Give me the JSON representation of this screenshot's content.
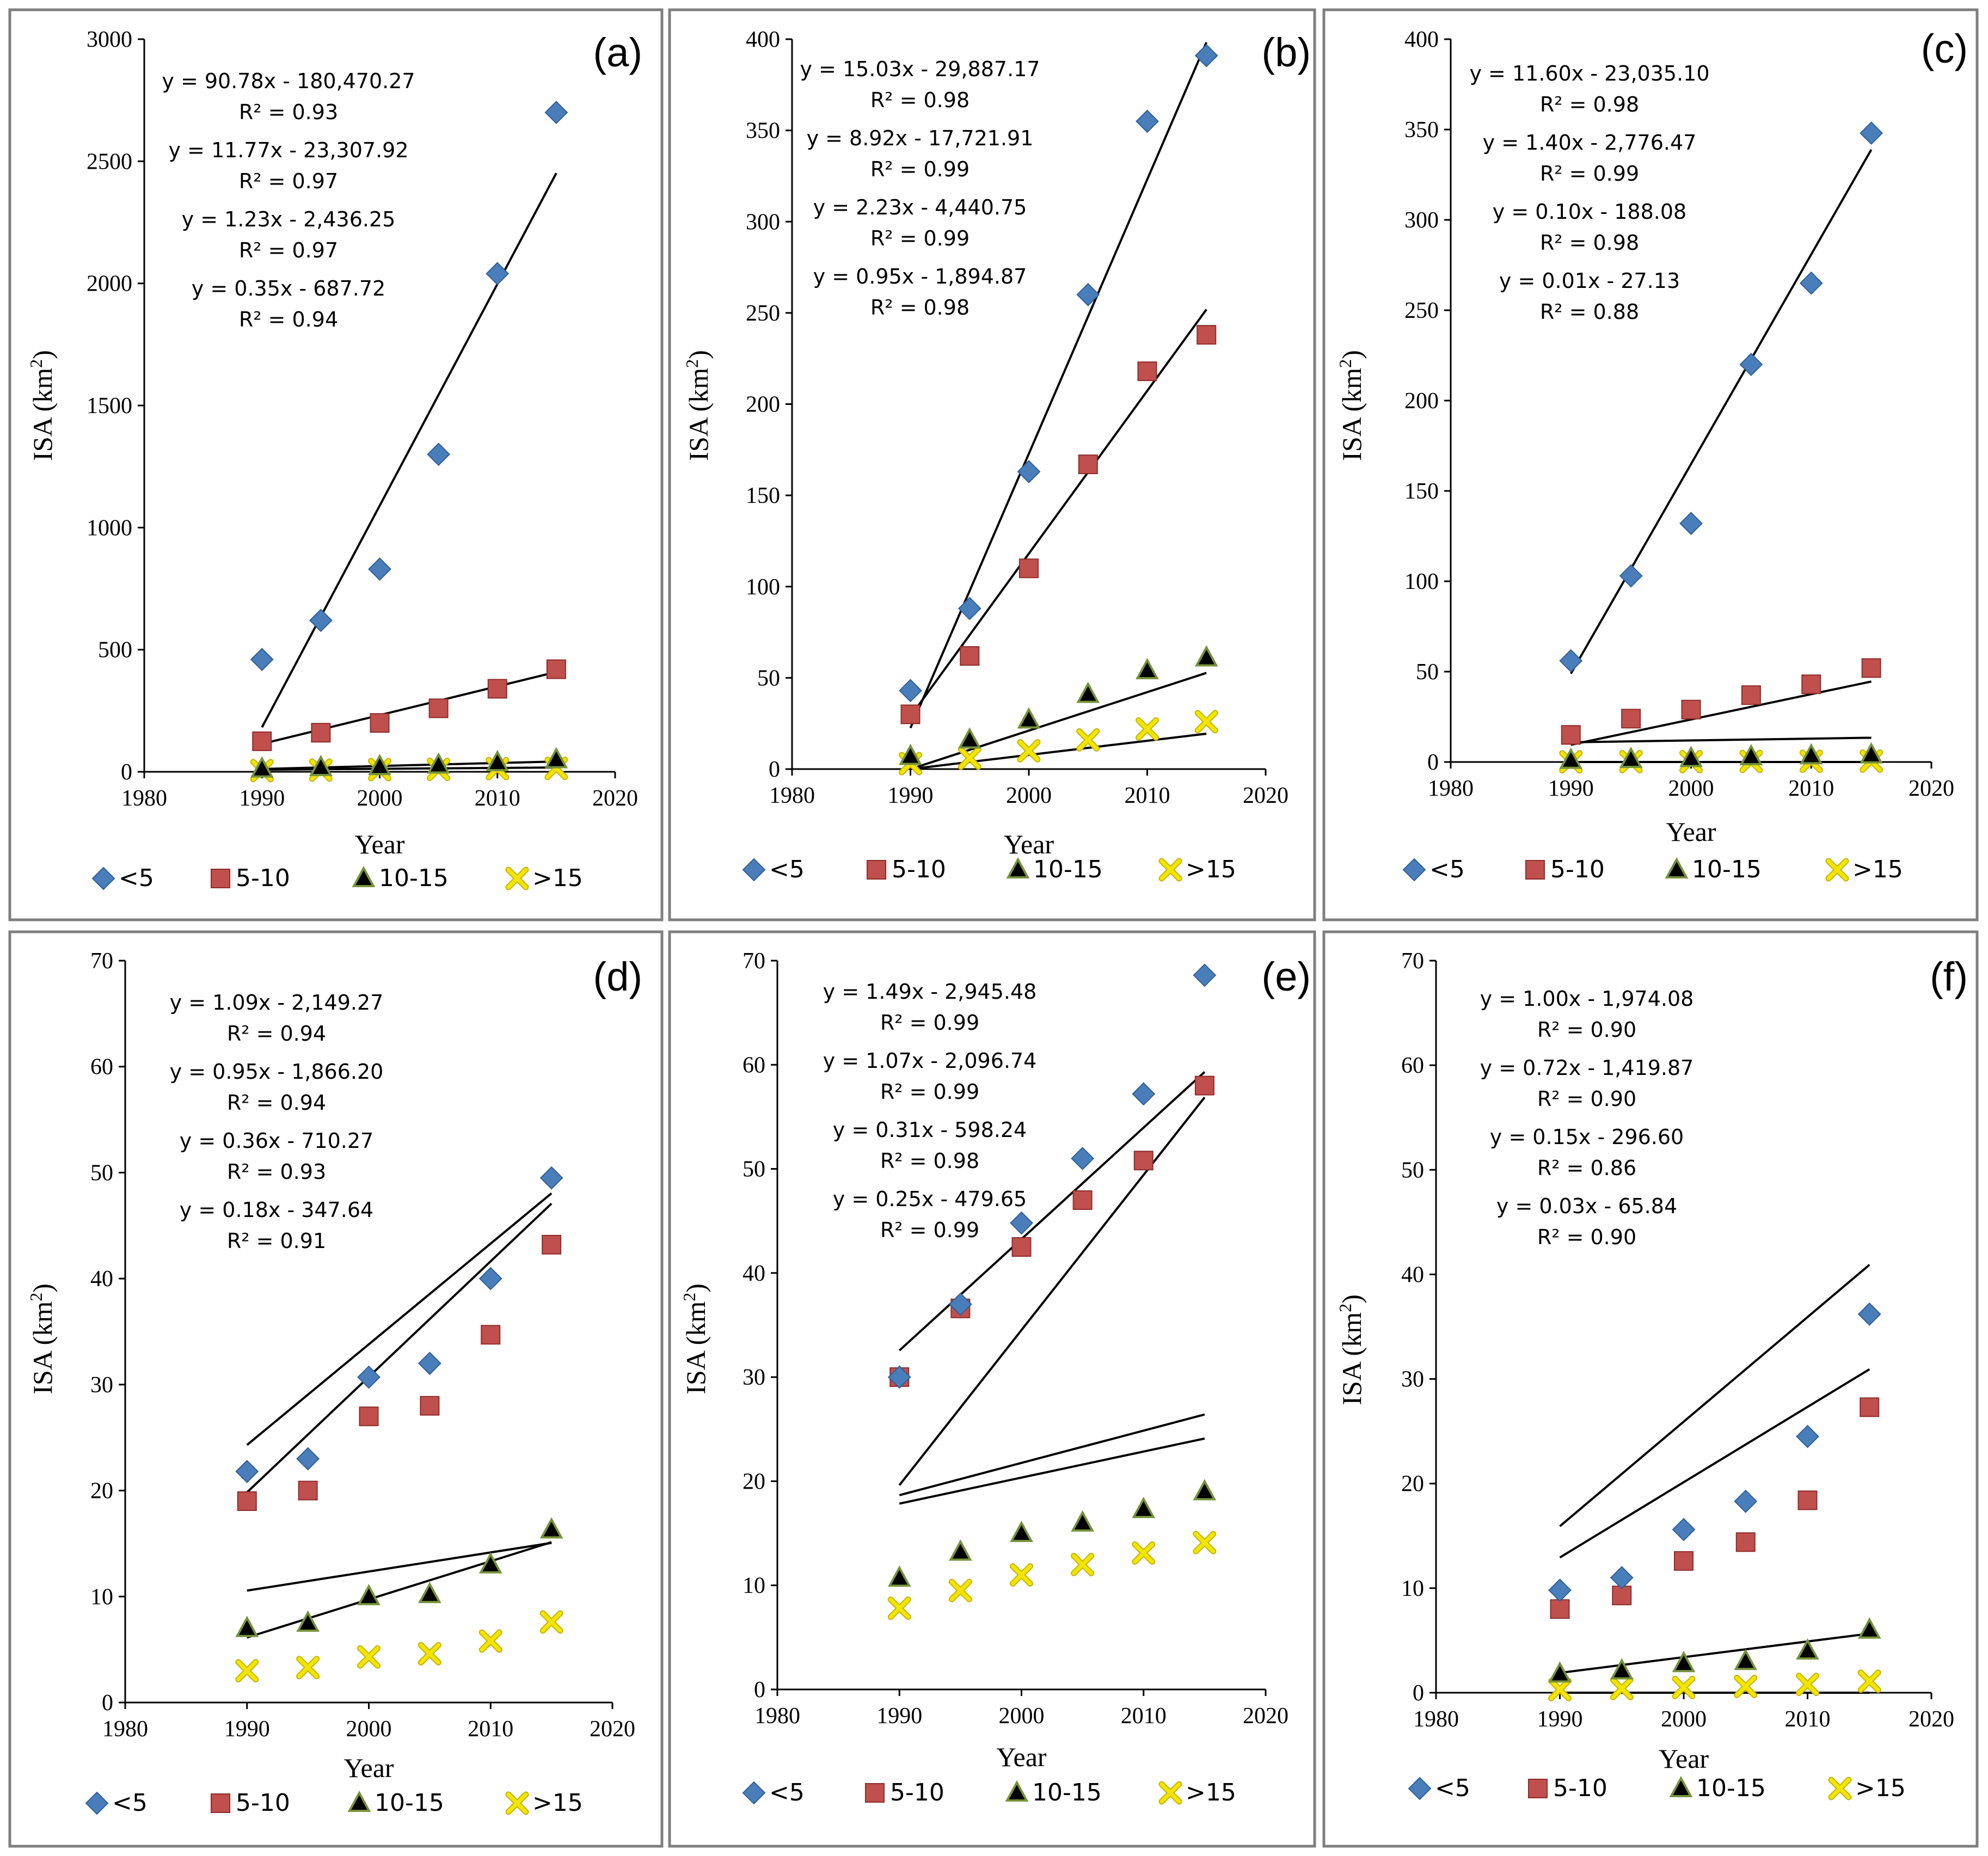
{
  "colors": {
    "lt5": "#4a7ebb",
    "5to10": "#c0504d",
    "10to15": "#000000",
    "10to15_fill": "#76923c",
    "gt15": "#f2e600",
    "gt15_stroke": "#c8b400"
  },
  "legend": [
    {
      "key": "lt5",
      "label": "<5",
      "marker": "diamond"
    },
    {
      "key": "5to10",
      "label": "5-10",
      "marker": "square"
    },
    {
      "key": "10to15",
      "label": "10-15",
      "marker": "triangle"
    },
    {
      "key": "gt15",
      "label": ">15",
      "marker": "x"
    }
  ],
  "chart_data": [
    {
      "type": "scatter",
      "panel": "(a)",
      "xlabel": "Year",
      "ylabel_main": "ISA (km",
      "ylabel_sup": "2",
      "ylabel_close": ")",
      "xlim": [
        1980,
        2020
      ],
      "ylim": [
        0,
        3000
      ],
      "x_ticks": [
        "1980",
        "1990",
        "2000",
        "2010",
        "2020"
      ],
      "y_ticks": [
        "0",
        "500",
        "1000",
        "1500",
        "2000",
        "2500",
        "3000"
      ],
      "x": [
        1990,
        1995,
        2000,
        2005,
        2010,
        2015
      ],
      "series": [
        {
          "key": "lt5",
          "name": "<5",
          "values": [
            460,
            620,
            830,
            1300,
            2040,
            2700
          ],
          "slope": 90.78,
          "intercept": -180470.27,
          "equation": "y = 90.78x - 180,470.27",
          "r2": "R² = 0.93"
        },
        {
          "key": "5to10",
          "name": "5-10",
          "values": [
            125,
            160,
            200,
            260,
            340,
            420
          ],
          "slope": 11.77,
          "intercept": -23307.92,
          "equation": "y = 11.77x - 23,307.92",
          "r2": "R² = 0.97"
        },
        {
          "key": "10to15",
          "name": "10-15",
          "values": [
            12,
            18,
            22,
            28,
            38,
            50
          ],
          "slope": 1.23,
          "intercept": -2436.25,
          "equation": "y = 1.23x - 2,436.25",
          "r2": "R² = 0.97"
        },
        {
          "key": "gt15",
          "name": ">15",
          "values": [
            5,
            7,
            9,
            10,
            13,
            14
          ],
          "slope": 0.35,
          "intercept": -687.72,
          "equation": "y = 0.35x - 687.72",
          "r2": "R² = 0.94"
        }
      ]
    },
    {
      "type": "scatter",
      "panel": "(b)",
      "xlabel": "Year",
      "ylabel_main": "ISA (km",
      "ylabel_sup": "2",
      "ylabel_close": ")",
      "xlim": [
        1980,
        2020
      ],
      "ylim": [
        0,
        400
      ],
      "x_ticks": [
        "1980",
        "1990",
        "2000",
        "2010",
        "2020"
      ],
      "y_ticks": [
        "0",
        "50",
        "100",
        "150",
        "200",
        "250",
        "300",
        "350",
        "400"
      ],
      "x": [
        1990,
        1995,
        2000,
        2005,
        2010,
        2015
      ],
      "series": [
        {
          "key": "lt5",
          "name": "<5",
          "values": [
            43,
            88,
            163,
            260,
            355,
            391
          ],
          "slope": 15.03,
          "intercept": -29887.17,
          "equation": "y = 15.03x - 29,887.17",
          "r2": "R² = 0.98"
        },
        {
          "key": "5to10",
          "name": "5-10",
          "values": [
            30,
            62,
            110,
            167,
            218,
            238
          ],
          "slope": 8.92,
          "intercept": -17721.91,
          "equation": "y = 8.92x - 17,721.91",
          "r2": "R² = 0.99"
        },
        {
          "key": "10to15",
          "name": "10-15",
          "values": [
            7,
            16,
            27,
            41,
            54,
            61
          ],
          "slope": 2.23,
          "intercept": -4440.75,
          "equation": "y = 2.23x - 4,440.75",
          "r2": "R² = 0.99"
        },
        {
          "key": "gt15",
          "name": ">15",
          "values": [
            3,
            6,
            10,
            16,
            22,
            26
          ],
          "slope": 0.95,
          "intercept": -1894.87,
          "equation": "y = 0.95x - 1,894.87",
          "r2": "R² = 0.98"
        }
      ]
    },
    {
      "type": "scatter",
      "panel": "(c)",
      "xlabel": "Year",
      "ylabel_main": "ISA (km",
      "ylabel_sup": "2",
      "ylabel_close": ")",
      "xlim": [
        1980,
        2020
      ],
      "ylim": [
        0,
        400
      ],
      "x_ticks": [
        "1980",
        "1990",
        "2000",
        "2010",
        "2020"
      ],
      "y_ticks": [
        "0",
        "50",
        "100",
        "150",
        "200",
        "250",
        "300",
        "350",
        "400"
      ],
      "x": [
        1990,
        1995,
        2000,
        2005,
        2010,
        2015
      ],
      "series": [
        {
          "key": "lt5",
          "name": "<5",
          "values": [
            56,
            103,
            132,
            220,
            265,
            348
          ],
          "slope": 11.6,
          "intercept": -23035.1,
          "equation": "y = 11.60x - 23,035.10",
          "r2": "R² = 0.98"
        },
        {
          "key": "5to10",
          "name": "5-10",
          "values": [
            15,
            24,
            29,
            37,
            43,
            52
          ],
          "slope": 1.4,
          "intercept": -2776.47,
          "equation": "y = 1.40x - 2,776.47",
          "r2": "R² = 0.99"
        },
        {
          "key": "10to15",
          "name": "10-15",
          "values": [
            1,
            1.5,
            2,
            3,
            3.5,
            4
          ],
          "slope": 0.1,
          "intercept": -188.08,
          "equation": "y = 0.10x - 188.08",
          "r2": "R² = 0.98"
        },
        {
          "key": "gt15",
          "name": ">15",
          "values": [
            0.1,
            0.2,
            0.2,
            0.3,
            0.4,
            0.5
          ],
          "slope": 0.01,
          "intercept": -27.13,
          "equation": "y = 0.01x - 27.13",
          "r2": "R² = 0.88"
        }
      ]
    },
    {
      "type": "scatter",
      "panel": "(d)",
      "xlabel": "Year",
      "ylabel_main": "ISA (km",
      "ylabel_sup": "2",
      "ylabel_close": ")",
      "xlim": [
        1980,
        2020
      ],
      "ylim": [
        0,
        70
      ],
      "x_ticks": [
        "1980",
        "1990",
        "2000",
        "2010",
        "2020"
      ],
      "y_ticks": [
        "0",
        "10",
        "20",
        "30",
        "40",
        "50",
        "60",
        "70"
      ],
      "x": [
        1990,
        1995,
        2000,
        2005,
        2010,
        2015
      ],
      "series": [
        {
          "key": "lt5",
          "name": "<5",
          "values": [
            21.8,
            23,
            30.7,
            32,
            40,
            49.5
          ],
          "slope": 1.09,
          "intercept": -2149.27,
          "equation": "y = 1.09x - 2,149.27",
          "r2": "R² = 0.94"
        },
        {
          "key": "5to10",
          "name": "5-10",
          "values": [
            19,
            20,
            27,
            28,
            34.7,
            43.2
          ],
          "slope": 0.95,
          "intercept": -1866.2,
          "equation": "y = 0.95x - 1,866.20",
          "r2": "R² = 0.94"
        },
        {
          "key": "10to15",
          "name": "10-15",
          "values": [
            7,
            7.5,
            10,
            10.2,
            13,
            16.3
          ],
          "slope": 0.36,
          "intercept": -710.27,
          "equation": "y = 0.36x - 710.27",
          "r2": "R² = 0.93"
        },
        {
          "key": "gt15",
          "name": ">15",
          "values": [
            3,
            3.3,
            4.3,
            4.6,
            5.8,
            7.6
          ],
          "slope": 0.18,
          "intercept": -347.64,
          "equation": "y = 0.18x - 347.64",
          "r2": "R² = 0.91"
        }
      ]
    },
    {
      "type": "scatter",
      "panel": "(e)",
      "xlabel": "Year",
      "ylabel_main": "ISA (km",
      "ylabel_sup": "2",
      "ylabel_close": ")",
      "xlim": [
        1980,
        2020
      ],
      "ylim": [
        0,
        70
      ],
      "x_ticks": [
        "1980",
        "1990",
        "2000",
        "2010",
        "2020"
      ],
      "y_ticks": [
        "0",
        "10",
        "20",
        "30",
        "40",
        "50",
        "60",
        "70"
      ],
      "x": [
        1990,
        1995,
        2000,
        2005,
        2010,
        2015
      ],
      "series": [
        {
          "key": "lt5",
          "name": "<5",
          "values": [
            30,
            37,
            44.8,
            51,
            57.2,
            68.6
          ],
          "slope": 1.49,
          "intercept": -2945.48,
          "equation": "y = 1.49x - 2,945.48",
          "r2": "R² = 0.99"
        },
        {
          "key": "5to10",
          "name": "5-10",
          "values": [
            30,
            36.6,
            42.5,
            47,
            50.8,
            58
          ],
          "slope": 1.07,
          "intercept": -2096.74,
          "equation": "y = 1.07x - 2,096.74",
          "r2": "R² = 0.99"
        },
        {
          "key": "10to15",
          "name": "10-15",
          "values": [
            10.7,
            13.2,
            15,
            16,
            17.3,
            19
          ],
          "slope": 0.31,
          "intercept": -598.24,
          "equation": "y = 0.31x - 598.24",
          "r2": "R² = 0.98"
        },
        {
          "key": "gt15",
          "name": ">15",
          "values": [
            7.8,
            9.5,
            11,
            12,
            13.1,
            14.1
          ],
          "slope": 0.25,
          "intercept": -479.65,
          "equation": "y = 0.25x - 479.65",
          "r2": "R² = 0.99"
        }
      ]
    },
    {
      "type": "scatter",
      "panel": "(f)",
      "xlabel": "Year",
      "ylabel_main": "ISA (km",
      "ylabel_sup": "2",
      "ylabel_close": ")",
      "xlim": [
        1980,
        2020
      ],
      "ylim": [
        0,
        70
      ],
      "x_ticks": [
        "1980",
        "1990",
        "2000",
        "2010",
        "2020"
      ],
      "y_ticks": [
        "0",
        "10",
        "20",
        "30",
        "40",
        "50",
        "60",
        "70"
      ],
      "x": [
        1990,
        1995,
        2000,
        2005,
        2010,
        2015
      ],
      "series": [
        {
          "key": "lt5",
          "name": "<5",
          "values": [
            9.8,
            11,
            15.6,
            18.3,
            24.5,
            36.2
          ],
          "slope": 1.0,
          "intercept": -1974.08,
          "equation": "y = 1.00x - 1,974.08",
          "r2": "R² = 0.90"
        },
        {
          "key": "5to10",
          "name": "5-10",
          "values": [
            8,
            9.3,
            12.6,
            14.4,
            18.4,
            27.3
          ],
          "slope": 0.72,
          "intercept": -1419.87,
          "equation": "y = 0.72x - 1,419.87",
          "r2": "R² = 0.90"
        },
        {
          "key": "10to15",
          "name": "10-15",
          "values": [
            1.8,
            2.1,
            2.8,
            3,
            4,
            6
          ],
          "slope": 0.15,
          "intercept": -296.6,
          "equation": "y = 0.15x - 296.60",
          "r2": "R² = 0.86"
        },
        {
          "key": "gt15",
          "name": ">15",
          "values": [
            0.3,
            0.4,
            0.5,
            0.6,
            0.8,
            1.1
          ],
          "slope": 0.03,
          "intercept": -65.84,
          "equation": "y = 0.03x - 65.84",
          "r2": "R² = 0.90"
        }
      ]
    }
  ]
}
